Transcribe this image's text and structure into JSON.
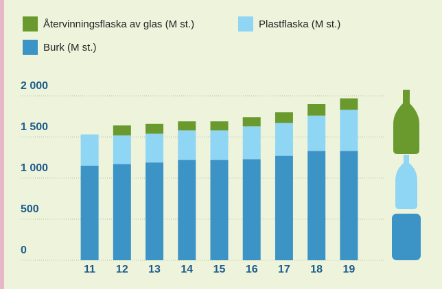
{
  "chart_data": {
    "type": "stacked-bar",
    "categories": [
      "11",
      "12",
      "13",
      "14",
      "15",
      "16",
      "17",
      "18",
      "19"
    ],
    "series": [
      {
        "name": "Burk (M st.)",
        "color": "#3c93c5",
        "values": [
          1150,
          1170,
          1190,
          1220,
          1220,
          1230,
          1270,
          1330,
          1330
        ]
      },
      {
        "name": "Plastflaska (M st.)",
        "color": "#8fd5f4",
        "values": [
          380,
          350,
          350,
          360,
          360,
          400,
          400,
          430,
          500
        ]
      },
      {
        "name": "Återvinningsflaska av glas (M st.)",
        "color": "#6a9a2e",
        "values": [
          0,
          120,
          120,
          110,
          110,
          110,
          130,
          140,
          140
        ]
      }
    ],
    "ylim": [
      0,
      2000
    ],
    "yticks": [
      0,
      500,
      {
        "value": 1000,
        "label": "1 000"
      },
      {
        "value": 1500,
        "label": "1 500"
      },
      {
        "value": 2000,
        "label": "2 000"
      }
    ],
    "grid": true
  }
}
